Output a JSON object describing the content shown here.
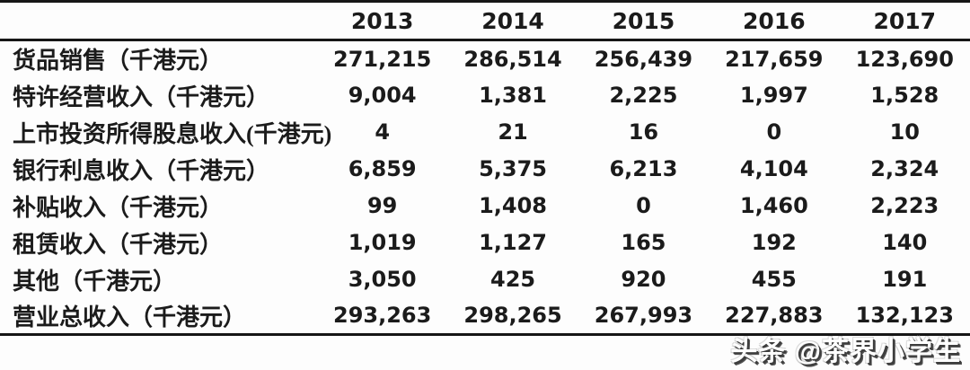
{
  "chart_data": {
    "type": "table",
    "columns": [
      "",
      "2013",
      "2014",
      "2015",
      "2016",
      "2017"
    ],
    "rows": [
      {
        "label": "货品销售（千港元）",
        "values": [
          "271,215",
          "286,514",
          "256,439",
          "217,659",
          "123,690"
        ]
      },
      {
        "label": "特许经营收入（千港元）",
        "values": [
          "9,004",
          "1,381",
          "2,225",
          "1,997",
          "1,528"
        ]
      },
      {
        "label": "上市投资所得股息收入(千港元)",
        "values": [
          "4",
          "21",
          "16",
          "0",
          "10"
        ]
      },
      {
        "label": "银行利息收入（千港元）",
        "values": [
          "6,859",
          "5,375",
          "6,213",
          "4,104",
          "2,324"
        ]
      },
      {
        "label": "补贴收入（千港元）",
        "values": [
          "99",
          "1,408",
          "0",
          "1,460",
          "2,223"
        ]
      },
      {
        "label": "租赁收入（千港元）",
        "values": [
          "1,019",
          "1,127",
          "165",
          "192",
          "140"
        ]
      },
      {
        "label": "其他（千港元）",
        "values": [
          "3,050",
          "425",
          "920",
          "455",
          "191"
        ]
      },
      {
        "label": "营业总收入（千港元）",
        "values": [
          "293,263",
          "298,265",
          "267,993",
          "227,883",
          "132,123"
        ]
      }
    ],
    "unit": "千港元",
    "layout": {
      "grid": "horizontal rules only: top, below header, below last row"
    }
  },
  "watermark": {
    "text": "头条 @茶界小学生"
  },
  "colors": {
    "background": "#fdfdfd",
    "text": "#1b1b1b",
    "border": "#161616",
    "watermark_shadow": "#3d3d3d"
  }
}
